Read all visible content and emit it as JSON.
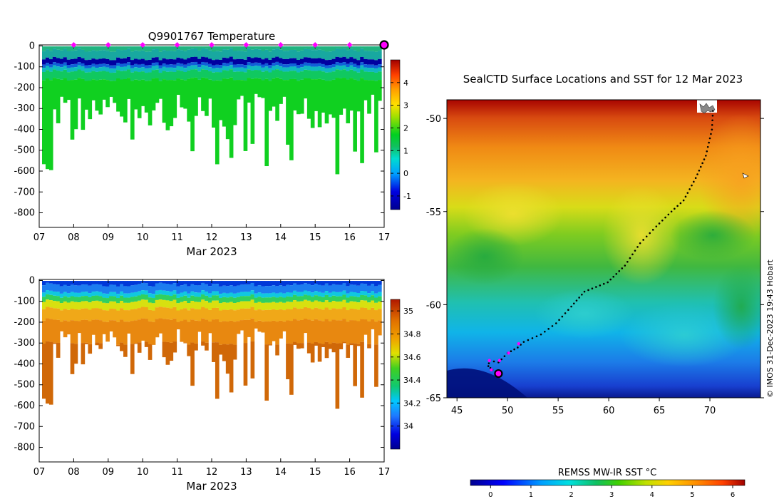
{
  "chart_data": [
    {
      "type": "heatmap",
      "title": "Q9901767  Temperature",
      "xlabel": "Mar 2023",
      "x_ticks": [
        "07",
        "08",
        "09",
        "10",
        "11",
        "12",
        "13",
        "14",
        "15",
        "16",
        "17"
      ],
      "x_range": [
        7,
        17
      ],
      "y_ticks": [
        "0",
        "-100",
        "-200",
        "-300",
        "-400",
        "-500",
        "-600",
        "-700",
        "-800"
      ],
      "ylim": [
        -870,
        5
      ],
      "colorbar": {
        "min": -1.6,
        "max": 5.0,
        "ticks": [
          "4",
          "3",
          "2",
          "1",
          "0",
          "-1"
        ],
        "tick_values": [
          4,
          3,
          2,
          1,
          0,
          -1
        ]
      },
      "profile_days": [
        8,
        9,
        10,
        11,
        12,
        13,
        14,
        15,
        16,
        17
      ],
      "current_day": 17
    },
    {
      "type": "heatmap",
      "title": "",
      "xlabel": "Mar 2023",
      "x_ticks": [
        "07",
        "08",
        "09",
        "10",
        "11",
        "12",
        "13",
        "14",
        "15",
        "16",
        "17"
      ],
      "x_range": [
        7,
        17
      ],
      "y_ticks": [
        "0",
        "-100",
        "-200",
        "-300",
        "-400",
        "-500",
        "-600",
        "-700",
        "-800"
      ],
      "ylim": [
        -870,
        5
      ],
      "colorbar": {
        "min": 33.8,
        "max": 35.1,
        "ticks": [
          "35",
          "34.8",
          "34.6",
          "34.4",
          "34.2",
          "34"
        ],
        "tick_values": [
          35,
          34.8,
          34.6,
          34.4,
          34.2,
          34
        ]
      }
    },
    {
      "type": "heatmap",
      "title": "SealCTD Surface Locations and SST for 12 Mar 2023",
      "x_ticks": [
        "45",
        "50",
        "55",
        "60",
        "65",
        "70"
      ],
      "x_values": [
        45,
        50,
        55,
        60,
        65,
        70
      ],
      "xlim": [
        44,
        75
      ],
      "y_ticks": [
        "-50",
        "-55",
        "-60",
        "-65"
      ],
      "y_values": [
        -50,
        -55,
        -60,
        -65
      ],
      "ylim": [
        -65,
        -49
      ],
      "colorbar": {
        "label": "REMSS MW-IR SST °C",
        "min": -0.5,
        "max": 6.3,
        "ticks": [
          "0",
          "1",
          "2",
          "3",
          "4",
          "5",
          "6"
        ],
        "tick_values": [
          0,
          1,
          2,
          3,
          4,
          5,
          6
        ]
      },
      "track": [
        [
          70.3,
          -49.6
        ],
        [
          70.2,
          -50.6
        ],
        [
          69.6,
          -52
        ],
        [
          68.6,
          -53.2
        ],
        [
          67.4,
          -54.4
        ],
        [
          66.2,
          -55.0
        ],
        [
          64.7,
          -55.8
        ],
        [
          63.1,
          -56.7
        ],
        [
          61.6,
          -57.9
        ],
        [
          59.9,
          -58.8
        ],
        [
          57.6,
          -59.3
        ],
        [
          56.3,
          -60.1
        ],
        [
          54.8,
          -61.0
        ],
        [
          53.3,
          -61.6
        ],
        [
          51.6,
          -62.0
        ],
        [
          51.0,
          -62.3
        ],
        [
          50.0,
          -62.6
        ],
        [
          49.1,
          -63.1
        ],
        [
          48.2,
          -63.0
        ],
        [
          48.1,
          -63.3
        ],
        [
          48.5,
          -63.5
        ],
        [
          49.1,
          -63.7
        ]
      ],
      "magenta_points": [
        [
          51.1,
          -62.1
        ],
        [
          50.1,
          -62.6
        ],
        [
          49.2,
          -63.0
        ],
        [
          48.2,
          -63.0
        ],
        [
          48.4,
          -63.5
        ]
      ],
      "current_position": [
        49.1,
        -63.7
      ],
      "credit": "© IMOS 31-Dec-2023 19:43 Hobart"
    }
  ]
}
